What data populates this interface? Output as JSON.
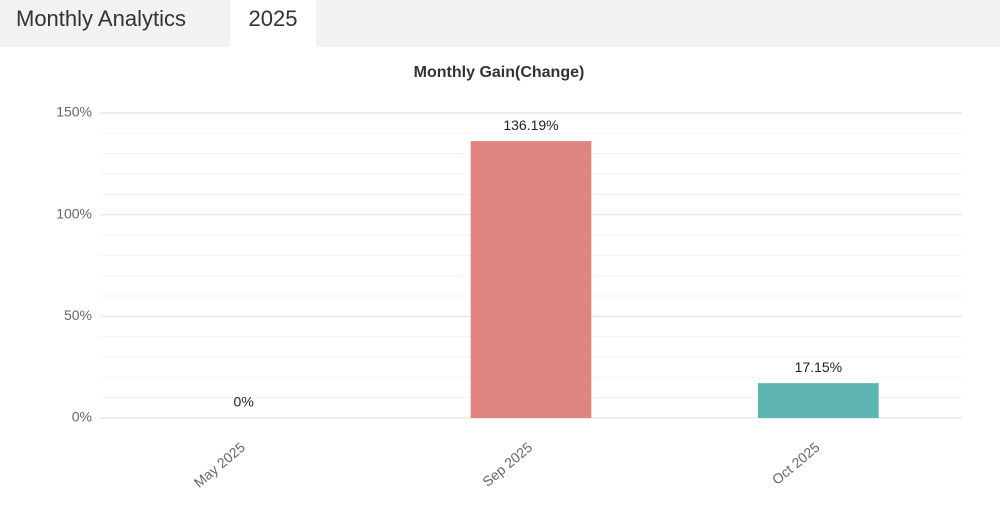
{
  "header": {
    "title": "Monthly Analytics",
    "tab": "2025"
  },
  "chart_data": {
    "type": "bar",
    "title": "Monthly Gain(Change)",
    "categories": [
      "May 2025",
      "Sep 2025",
      "Oct 2025"
    ],
    "values": [
      0,
      136.19,
      17.15
    ],
    "value_labels": [
      "0%",
      "136.19%",
      "17.15%"
    ],
    "colors": [
      "#e08482",
      "#e08482",
      "#5eb5b1"
    ],
    "ylim": [
      0,
      150
    ],
    "yticks": [
      {
        "value": 0,
        "label": "0%"
      },
      {
        "value": 50,
        "label": "50%"
      },
      {
        "value": 100,
        "label": "100%"
      },
      {
        "value": 150,
        "label": "150%"
      }
    ],
    "minor_yticks": [
      10,
      20,
      30,
      40,
      60,
      70,
      80,
      90,
      110,
      120,
      130,
      140
    ],
    "grid": true
  }
}
